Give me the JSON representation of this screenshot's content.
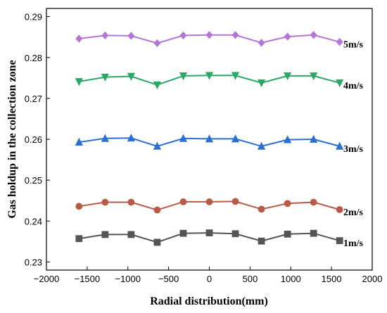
{
  "chart_data": {
    "type": "line",
    "xlabel": "Radial distribution(mm)",
    "ylabel": "Gas holdup in the collection zone",
    "xlim": [
      -2000,
      2000
    ],
    "ylim": [
      0.228,
      0.292
    ],
    "x_ticks": [
      "−2000",
      "−1500",
      "−1000",
      "−500",
      "0",
      "500",
      "1000",
      "1500",
      "2000"
    ],
    "y_ticks": [
      "0.23",
      "0.24",
      "0.25",
      "0.26",
      "0.27",
      "0.28",
      "0.29"
    ],
    "x": [
      -1600,
      -1280,
      -960,
      -640,
      -320,
      0,
      320,
      640,
      960,
      1280,
      1600
    ],
    "series": [
      {
        "name": "1m/s",
        "color": "#555555",
        "marker": "square",
        "values": [
          0.2357,
          0.2367,
          0.2367,
          0.2348,
          0.237,
          0.2371,
          0.2369,
          0.2351,
          0.2368,
          0.237,
          0.2352
        ]
      },
      {
        "name": "2m/s",
        "color": "#b85a48",
        "marker": "circle",
        "values": [
          0.2436,
          0.2446,
          0.2446,
          0.2427,
          0.2447,
          0.2447,
          0.2448,
          0.2429,
          0.2443,
          0.2446,
          0.2428
        ]
      },
      {
        "name": "3m/s",
        "color": "#2b6fcf",
        "marker": "triangle-up",
        "values": [
          0.2593,
          0.2602,
          0.2603,
          0.2583,
          0.2602,
          0.2601,
          0.2601,
          0.2583,
          0.2599,
          0.26,
          0.2583
        ]
      },
      {
        "name": "4m/s",
        "color": "#2aa865",
        "marker": "triangle-down",
        "values": [
          0.2741,
          0.2752,
          0.2754,
          0.2733,
          0.2755,
          0.2756,
          0.2756,
          0.2738,
          0.2755,
          0.2755,
          0.2738
        ]
      },
      {
        "name": "5m/s",
        "color": "#b574d8",
        "marker": "diamond",
        "values": [
          0.2846,
          0.2854,
          0.2853,
          0.2835,
          0.2854,
          0.2855,
          0.2855,
          0.2836,
          0.2851,
          0.2855,
          0.2838
        ]
      }
    ]
  }
}
